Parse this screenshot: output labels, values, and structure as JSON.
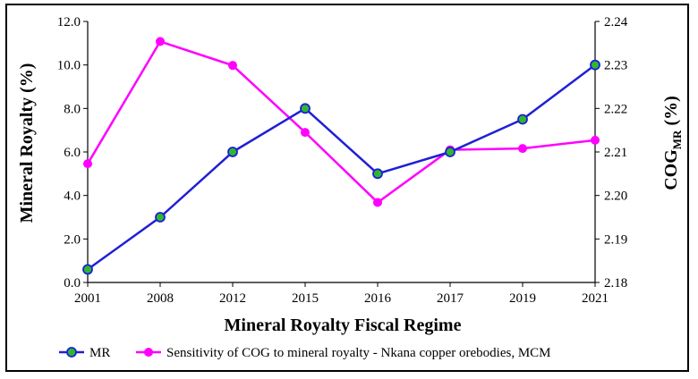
{
  "chart_data": {
    "type": "line",
    "categories": [
      "2001",
      "2008",
      "2012",
      "2015",
      "2016",
      "2017",
      "2019",
      "2021"
    ],
    "xlabel": "Mineral Royalty Fiscal Regime",
    "ylabel": "Mineral Royalty (%)",
    "y2label_main": "COG",
    "y2label_sub": "MR",
    "y2label_suffix": " (%)",
    "ylim": [
      0,
      12
    ],
    "y2lim": [
      2.18,
      2.24
    ],
    "yticks": [
      "0.0",
      "2.0",
      "4.0",
      "6.0",
      "8.0",
      "10.0",
      "12.0"
    ],
    "y2ticks": [
      "2.18",
      "2.19",
      "2.20",
      "2.21",
      "2.22",
      "2.23",
      "2.24"
    ],
    "series": [
      {
        "name": "MR",
        "axis": "left",
        "values": [
          0.6,
          3.0,
          6.0,
          8.0,
          5.0,
          6.0,
          7.5,
          10.0
        ],
        "line_color": "#1f1fd6",
        "marker_color": "#2db82d"
      },
      {
        "name": "Sensitivity of COG to mineral royalty - Nkana copper orebodies, MCM",
        "axis": "right",
        "values": [
          2.2073,
          2.2354,
          2.2299,
          2.2145,
          2.1984,
          2.2105,
          2.2108,
          2.2127
        ],
        "line_color": "#ff00ff",
        "marker_color": "#ff00ff"
      }
    ],
    "legend_position": "bottom"
  }
}
